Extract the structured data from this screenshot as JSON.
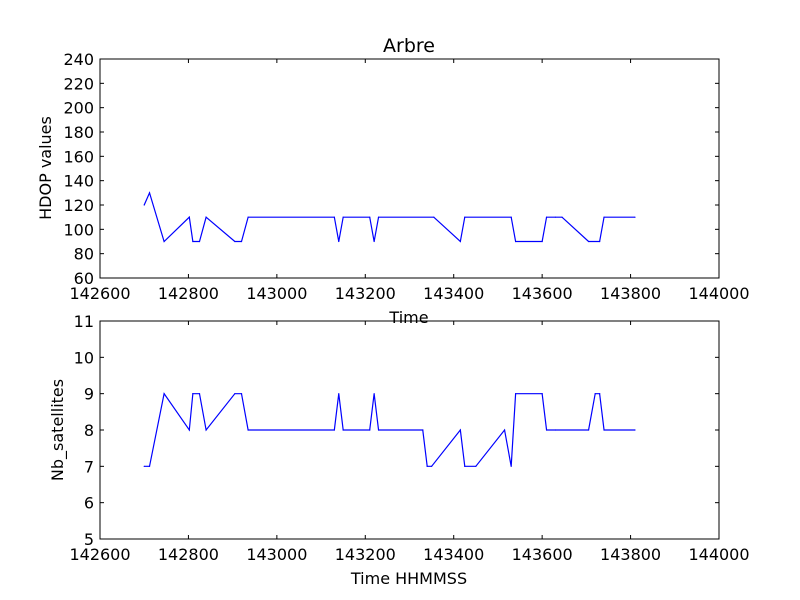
{
  "chart_data": [
    {
      "type": "line",
      "title": "Arbre",
      "xlabel": "Time",
      "ylabel": "HDOP values",
      "xlim": [
        142600,
        144000
      ],
      "ylim": [
        60,
        240
      ],
      "xticks": [
        "142600",
        "142800",
        "143000",
        "143200",
        "143400",
        "143600",
        "143800",
        "144000"
      ],
      "yticks": [
        "60",
        "80",
        "100",
        "120",
        "140",
        "160",
        "180",
        "200",
        "220",
        "240"
      ],
      "grid": false,
      "color": "#0000ff",
      "x": [
        142700,
        142712,
        142745,
        142802,
        142810,
        142825,
        142840,
        142905,
        142920,
        142935,
        143130,
        143140,
        143150,
        143210,
        143220,
        143230,
        143355,
        143415,
        143425,
        143530,
        143540,
        143600,
        143610,
        143630,
        143645,
        143705,
        143730,
        143740,
        143810
      ],
      "y": [
        120,
        130,
        90,
        110,
        90,
        90,
        110,
        90,
        90,
        110,
        110,
        90,
        110,
        110,
        90,
        110,
        110,
        90,
        110,
        110,
        90,
        90,
        110,
        110,
        110,
        90,
        90,
        110,
        110
      ]
    },
    {
      "type": "line",
      "title": "",
      "xlabel": "Time HHMMSS",
      "ylabel": "Nb_satellites",
      "xlim": [
        142600,
        144000
      ],
      "ylim": [
        5,
        11
      ],
      "xticks": [
        "142600",
        "142800",
        "143000",
        "143200",
        "143400",
        "143600",
        "143800",
        "144000"
      ],
      "yticks": [
        "5",
        "6",
        "7",
        "8",
        "9",
        "10",
        "11"
      ],
      "grid": false,
      "color": "#0000ff",
      "x": [
        142700,
        142712,
        142745,
        142802,
        142810,
        142825,
        142840,
        142905,
        142920,
        142935,
        143130,
        143140,
        143150,
        143210,
        143220,
        143230,
        143330,
        143340,
        143350,
        143415,
        143425,
        143450,
        143515,
        143530,
        143540,
        143600,
        143610,
        143630,
        143705,
        143720,
        143730,
        143740,
        143810
      ],
      "y": [
        7,
        7,
        9,
        8,
        9,
        9,
        8,
        9,
        9,
        8,
        8,
        9,
        8,
        8,
        9,
        8,
        8,
        7,
        7,
        8,
        7,
        7,
        8,
        7,
        9,
        9,
        8,
        8,
        8,
        9,
        9,
        8,
        8
      ]
    }
  ]
}
